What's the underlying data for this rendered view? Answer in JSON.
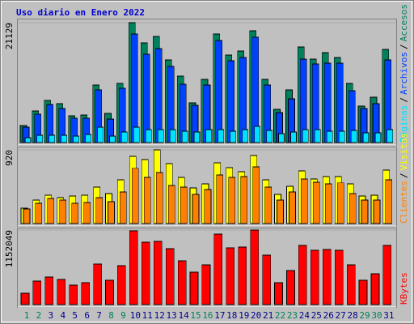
{
  "chart_data": [
    {
      "type": "bar",
      "title": "Uso diario en Enero 2022",
      "ylim": [
        0,
        21129
      ],
      "yticks": [
        21129
      ],
      "separator": "/",
      "series": [
        {
          "name": "Accesos",
          "color": "#00805c",
          "values": [
            3000,
            5570,
            7420,
            6850,
            4710,
            4850,
            10140,
            5140,
            10420,
            21129,
            17560,
            18700,
            14560,
            11710,
            7000,
            11140,
            19130,
            15420,
            16130,
            19700,
            11140,
            5850,
            9280,
            16850,
            14710,
            15850,
            14990,
            10420,
            6420,
            8000,
            16420
          ]
        },
        {
          "name": "Archivos",
          "color": "#0040ff",
          "values": [
            2710,
            5000,
            6710,
            6000,
            4280,
            4280,
            9280,
            4140,
            9570,
            19130,
            15560,
            16560,
            13420,
            10280,
            6570,
            10140,
            17990,
            14420,
            14990,
            18560,
            10140,
            5280,
            7710,
            14700,
            13850,
            13990,
            13990,
            9140,
            6000,
            6850,
            14560
          ]
        },
        {
          "name": "Páginas",
          "color": "#00e0ff",
          "values": [
            860,
            1290,
            1290,
            1290,
            1140,
            1430,
            2710,
            1140,
            1860,
            2710,
            2280,
            2280,
            2280,
            2000,
            1860,
            2280,
            2280,
            2000,
            2280,
            2860,
            2140,
            1570,
            1860,
            2280,
            2280,
            2000,
            2000,
            2140,
            1710,
            1710,
            2280
          ]
        }
      ]
    },
    {
      "type": "bar",
      "ylim": [
        0,
        920
      ],
      "yticks": [
        920
      ],
      "separator": "/",
      "series": [
        {
          "name": "Visitas",
          "color": "#ffff00",
          "values": [
            192,
            293,
            354,
            324,
            344,
            354,
            455,
            374,
            546,
            839,
            799,
            920,
            748,
            576,
            445,
            495,
            758,
            698,
            647,
            849,
            546,
            364,
            465,
            657,
            556,
            586,
            586,
            495,
            344,
            354,
            667
          ]
        },
        {
          "name": "Clientes",
          "color": "#ff8000",
          "values": [
            182,
            253,
            313,
            293,
            253,
            263,
            324,
            273,
            394,
            688,
            576,
            637,
            475,
            455,
            364,
            425,
            607,
            576,
            586,
            708,
            455,
            293,
            394,
            556,
            516,
            495,
            506,
            374,
            293,
            293,
            546
          ]
        }
      ]
    },
    {
      "type": "bar",
      "ylim": [
        0,
        1152049
      ],
      "yticks": [
        1152049
      ],
      "categories": [
        "1",
        "2",
        "3",
        "4",
        "5",
        "6",
        "7",
        "8",
        "9",
        "10",
        "11",
        "12",
        "13",
        "14",
        "15",
        "16",
        "17",
        "18",
        "19",
        "20",
        "21",
        "22",
        "23",
        "24",
        "25",
        "26",
        "27",
        "28",
        "29",
        "30",
        "31"
      ],
      "category_colors": [
        "#00805c",
        "#00805c",
        "#00008b",
        "#00008b",
        "#00008b",
        "#00008b",
        "#00008b",
        "#00805c",
        "#00805c",
        "#00008b",
        "#00008b",
        "#00008b",
        "#00008b",
        "#00008b",
        "#00805c",
        "#00805c",
        "#00008b",
        "#00008b",
        "#00008b",
        "#00008b",
        "#00008b",
        "#00805c",
        "#00805c",
        "#00008b",
        "#00008b",
        "#00008b",
        "#00008b",
        "#00008b",
        "#00805c",
        "#00805c",
        "#00008b"
      ],
      "series": [
        {
          "name": "KBytes",
          "color": "#ff0000",
          "values": [
            175300,
            363100,
            425700,
            388200,
            300500,
            338100,
            626100,
            375700,
            601100,
            1139500,
            964200,
            976700,
            864000,
            676200,
            500900,
            613600,
            1089400,
            876500,
            889100,
            1152049,
            763800,
            338100,
            525900,
            914100,
            839000,
            851500,
            839000,
            613600,
            375700,
            475800,
            914100
          ]
        }
      ]
    }
  ]
}
